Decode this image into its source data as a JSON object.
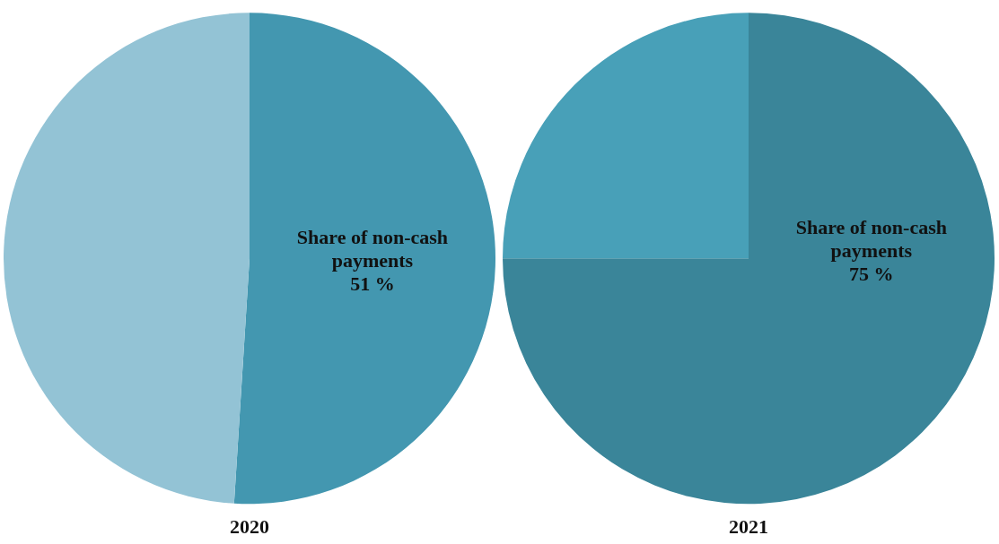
{
  "chart_data": [
    {
      "type": "pie",
      "title": "2020",
      "categories": [
        "Share of non-cash payments",
        null
      ],
      "values": [
        51,
        49
      ],
      "colors": [
        "#4397b0",
        "#93c3d5"
      ],
      "value_labels": [
        "51 %",
        null
      ],
      "legend": false
    },
    {
      "type": "pie",
      "title": "2021",
      "categories": [
        "Share of non-cash payments",
        null
      ],
      "values": [
        75,
        25
      ],
      "colors": [
        "#3a8599",
        "#48a0b8"
      ],
      "value_labels": [
        "75 %",
        null
      ],
      "legend": false
    }
  ]
}
